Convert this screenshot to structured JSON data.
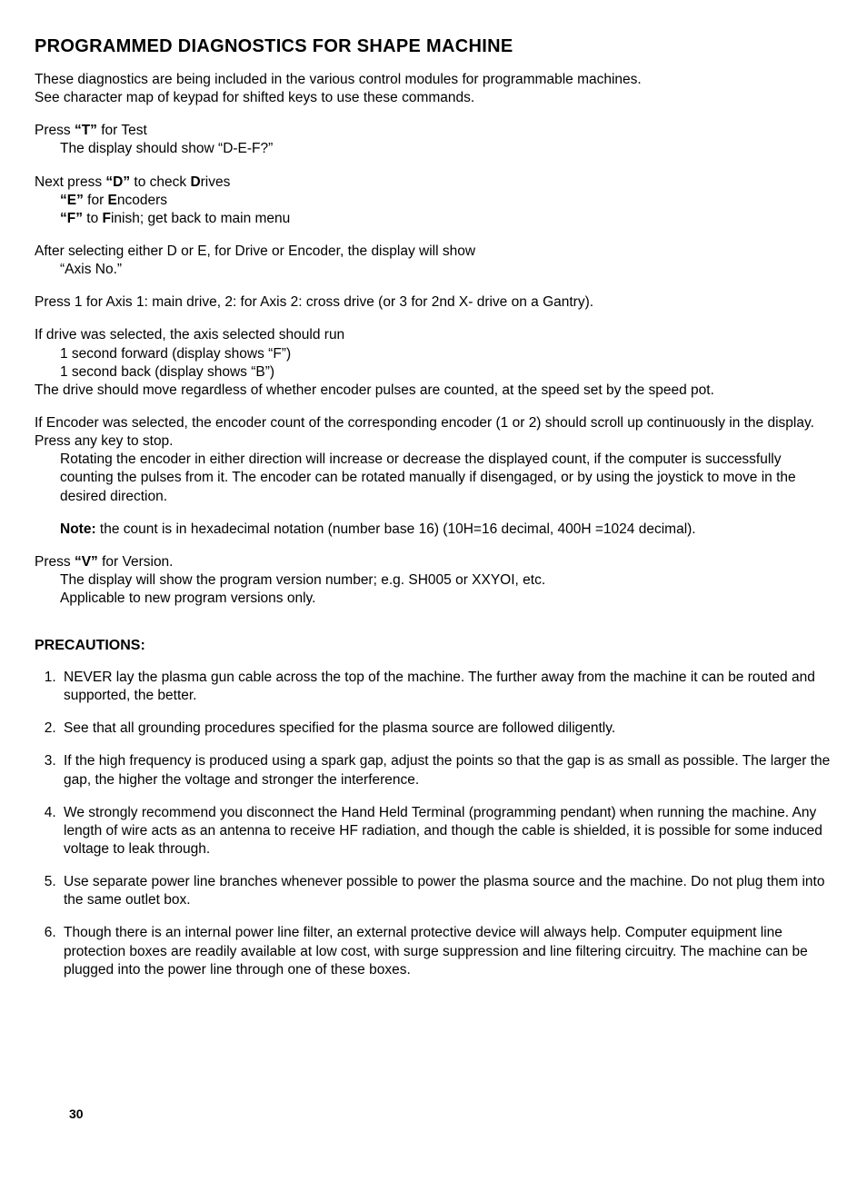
{
  "title": "PROGRAMMED DIAGNOSTICS FOR SHAPE MACHINE",
  "intro1": "These diagnostics are being included in the various control modules for programmable machines.",
  "intro2": "See character map of keypad for shifted keys to use these commands.",
  "test": {
    "prefix": "Press ",
    "key": "“T”",
    "suffix": " for Test",
    "line2": "The display should show “D-E-F?”"
  },
  "next": {
    "prefix": "Next press ",
    "key": "“D”",
    "mid": " to check ",
    "bold1": "D",
    "suffix1": "rives",
    "e_key": "“E”",
    "e_mid": " for ",
    "e_bold": "E",
    "e_suffix": "ncoders",
    "f_key": "“F”",
    "f_mid": " to ",
    "f_bold": "F",
    "f_suffix": "inish; get back to main menu"
  },
  "after_select1": "After selecting either D or E, for Drive or Encoder, the display will show",
  "after_select2": "“Axis No.”",
  "press_axis": "Press 1 for Axis 1: main drive, 2: for Axis 2: cross drive (or 3 for 2nd X- drive on a Gantry).",
  "drive_sel1": "If drive was selected, the axis selected should run",
  "drive_sel2": "1 second forward (display shows “F”)",
  "drive_sel3": "1 second back  (display shows “B”)",
  "drive_sel4": "The drive should move regardless of whether encoder pulses are counted, at the speed set by the speed pot.",
  "enc_sel1": "If Encoder was selected, the encoder count of the corresponding encoder (1 or 2) should scroll up continuously in the display. Press any key to stop.",
  "enc_sel2": "Rotating the encoder in either direction will increase or decrease the displayed count, if the computer is successfully counting the pulses from it. The encoder can be rotated manually if disengaged, or by using the joystick to move in the desired direction.",
  "note_label": "Note:",
  "note_text": " the count is in hexadecimal notation (number base 16) (10H=16 decimal, 400H =1024 decimal).",
  "version": {
    "prefix": "Press ",
    "key": "“V”",
    "suffix": " for Version.",
    "line2": "The display will show the program version number; e.g. SH005 or XXYOI, etc.",
    "line3": "Applicable to new program versions only."
  },
  "precautions_title": "PRECAUTIONS:",
  "precautions": [
    "NEVER lay the plasma gun cable across the top of the machine. The further away from the machine it can be routed and supported, the better.",
    "See that all grounding procedures specified for the plasma source are followed diligently.",
    "If the high frequency is produced using a spark gap, adjust the points so that the gap is as small as possible. The larger the gap, the higher the voltage and stronger the interference.",
    "We strongly recommend you disconnect the Hand Held Terminal (programming pendant) when running the machine. Any length of wire acts as an antenna to receive HF radiation, and though the cable is shielded, it is possible for some induced voltage to leak through.",
    "Use separate power line branches whenever possible to power the plasma source and the machine. Do not plug them into the same outlet box.",
    "Though there is an internal power line filter, an external protective device will always help. Computer equipment line protection boxes are readily available at low cost, with surge suppression and line filtering circuitry. The machine can be plugged into the power line through one of these boxes."
  ],
  "page_number": "30"
}
